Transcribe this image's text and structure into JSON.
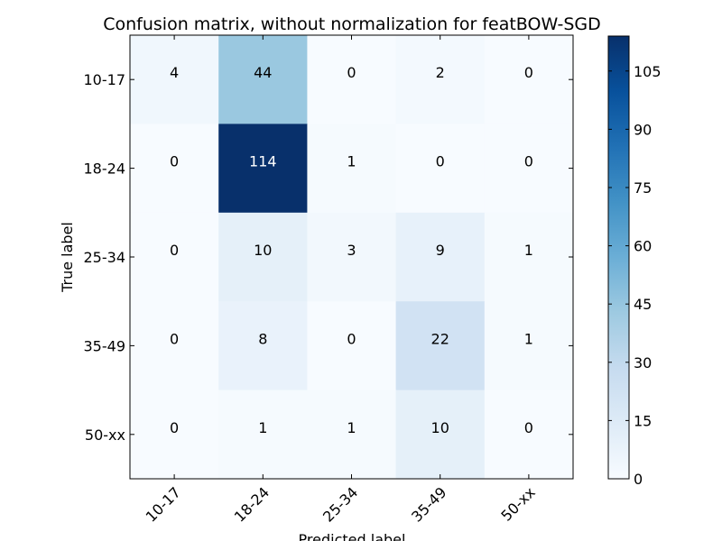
{
  "chart_data": {
    "type": "heatmap",
    "title": "Confusion matrix, without normalization for featBOW-SGD",
    "xlabel": "Predicted label",
    "ylabel": "True label",
    "x_categories": [
      "10-17",
      "18-24",
      "25-34",
      "35-49",
      "50-xx"
    ],
    "y_categories": [
      "10-17",
      "18-24",
      "25-34",
      "35-49",
      "50-xx"
    ],
    "values": [
      [
        4,
        44,
        0,
        2,
        0
      ],
      [
        0,
        114,
        1,
        0,
        0
      ],
      [
        0,
        10,
        3,
        9,
        1
      ],
      [
        0,
        8,
        0,
        22,
        1
      ],
      [
        0,
        1,
        1,
        10,
        0
      ]
    ],
    "colorbar": {
      "colormap": "Blues",
      "vmin": 0,
      "vmax": 114,
      "ticks": [
        0,
        15,
        30,
        45,
        60,
        75,
        90,
        105
      ]
    },
    "text_threshold": 57,
    "text_color_light": "#ffffff",
    "text_color_dark": "#000000"
  }
}
